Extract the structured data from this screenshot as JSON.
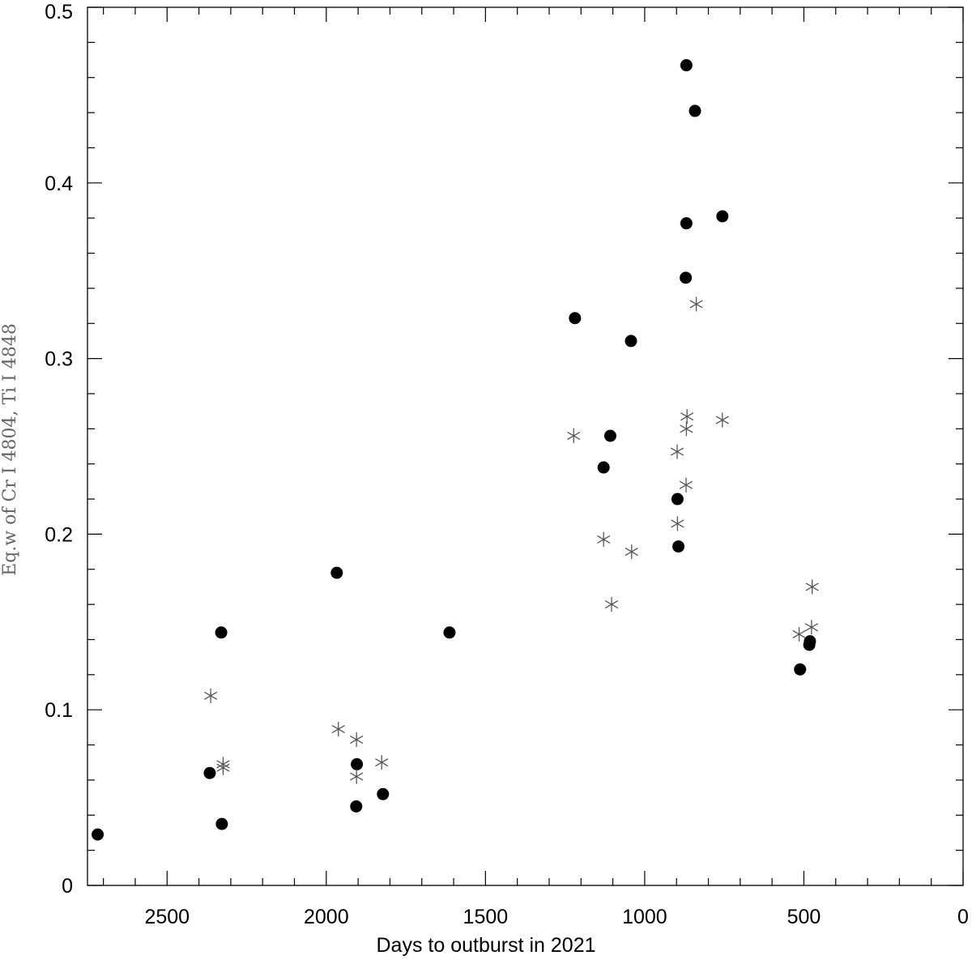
{
  "chart_data": {
    "type": "scatter",
    "title": "",
    "xlabel": "Days to outburst in 2021",
    "ylabel": "Eq.w of Cr I 4804, Ti I 4848",
    "xlim": [
      2750,
      0
    ],
    "ylim": [
      0,
      0.5
    ],
    "x_reversed": true,
    "grid": false,
    "legend": "none",
    "x_ticks": [
      {
        "value": 2500,
        "label": "2500"
      },
      {
        "value": 2000,
        "label": "2000"
      },
      {
        "value": 1500,
        "label": "1500"
      },
      {
        "value": 1000,
        "label": "1000"
      },
      {
        "value": 500,
        "label": "500"
      },
      {
        "value": 0,
        "label": "0"
      }
    ],
    "y_ticks": [
      {
        "value": 0,
        "label": "0"
      },
      {
        "value": 0.1,
        "label": "0.1"
      },
      {
        "value": 0.2,
        "label": "0.2"
      },
      {
        "value": 0.3,
        "label": "0.3"
      },
      {
        "value": 0.4,
        "label": "0.4"
      },
      {
        "value": 0.5,
        "label": "0.5"
      }
    ],
    "series": [
      {
        "marker": "filled-circle",
        "color": "#000000",
        "points": [
          {
            "x": 2718,
            "y": 0.029
          },
          {
            "x": 2366,
            "y": 0.064
          },
          {
            "x": 2330,
            "y": 0.144
          },
          {
            "x": 2328,
            "y": 0.035
          },
          {
            "x": 1967,
            "y": 0.178
          },
          {
            "x": 1904,
            "y": 0.069
          },
          {
            "x": 1906,
            "y": 0.045
          },
          {
            "x": 1822,
            "y": 0.052
          },
          {
            "x": 1613,
            "y": 0.144
          },
          {
            "x": 1219,
            "y": 0.323
          },
          {
            "x": 1043,
            "y": 0.31
          },
          {
            "x": 1108,
            "y": 0.256
          },
          {
            "x": 1129,
            "y": 0.238
          },
          {
            "x": 869,
            "y": 0.467
          },
          {
            "x": 842,
            "y": 0.441
          },
          {
            "x": 869,
            "y": 0.377
          },
          {
            "x": 756,
            "y": 0.381
          },
          {
            "x": 871,
            "y": 0.346
          },
          {
            "x": 897,
            "y": 0.22
          },
          {
            "x": 894,
            "y": 0.193
          },
          {
            "x": 512,
            "y": 0.123
          },
          {
            "x": 481,
            "y": 0.139
          },
          {
            "x": 483,
            "y": 0.137
          }
        ]
      },
      {
        "marker": "asterisk",
        "color": "#555555",
        "points": [
          {
            "x": 2363,
            "y": 0.108
          },
          {
            "x": 2324,
            "y": 0.069
          },
          {
            "x": 2324,
            "y": 0.067
          },
          {
            "x": 1962,
            "y": 0.089
          },
          {
            "x": 1905,
            "y": 0.083
          },
          {
            "x": 1905,
            "y": 0.062
          },
          {
            "x": 1826,
            "y": 0.07
          },
          {
            "x": 1223,
            "y": 0.256
          },
          {
            "x": 1129,
            "y": 0.197
          },
          {
            "x": 1104,
            "y": 0.16
          },
          {
            "x": 1041,
            "y": 0.19
          },
          {
            "x": 838,
            "y": 0.331
          },
          {
            "x": 867,
            "y": 0.267
          },
          {
            "x": 869,
            "y": 0.26
          },
          {
            "x": 756,
            "y": 0.265
          },
          {
            "x": 898,
            "y": 0.247
          },
          {
            "x": 870,
            "y": 0.228
          },
          {
            "x": 897,
            "y": 0.206
          },
          {
            "x": 474,
            "y": 0.17
          },
          {
            "x": 476,
            "y": 0.147
          },
          {
            "x": 515,
            "y": 0.143
          }
        ]
      }
    ]
  }
}
